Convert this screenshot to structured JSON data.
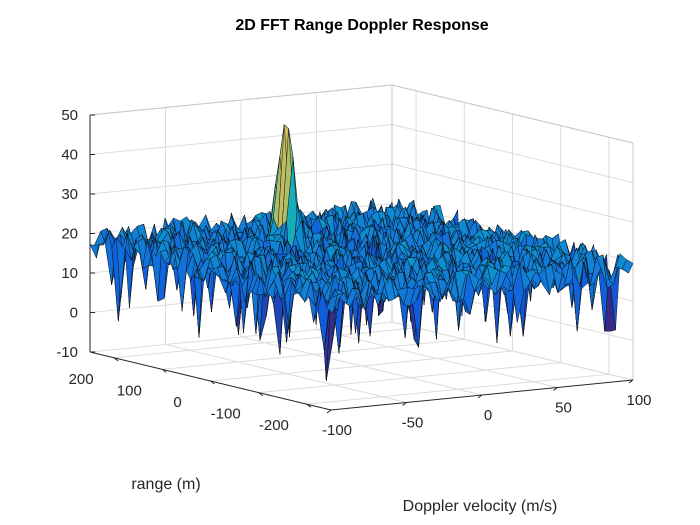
{
  "chart_data": {
    "type": "surface",
    "title": "2D FFT Range Doppler Response",
    "xlabel": "Doppler velocity (m/s)",
    "ylabel": "range (m)",
    "zlabel": "",
    "xlim": [
      -100,
      100
    ],
    "ylim": [
      -250,
      250
    ],
    "zlim": [
      -10,
      50
    ],
    "x_ticks": [
      -100,
      -50,
      0,
      50,
      100
    ],
    "y_ticks": [
      -200,
      -100,
      0,
      100,
      200
    ],
    "z_ticks": [
      -10,
      0,
      10,
      20,
      30,
      40,
      50
    ],
    "grid": true,
    "colormap": "parula",
    "noise_floor_level": 18,
    "peak": {
      "doppler_velocity": -15,
      "range": 110,
      "magnitude": 42
    }
  }
}
